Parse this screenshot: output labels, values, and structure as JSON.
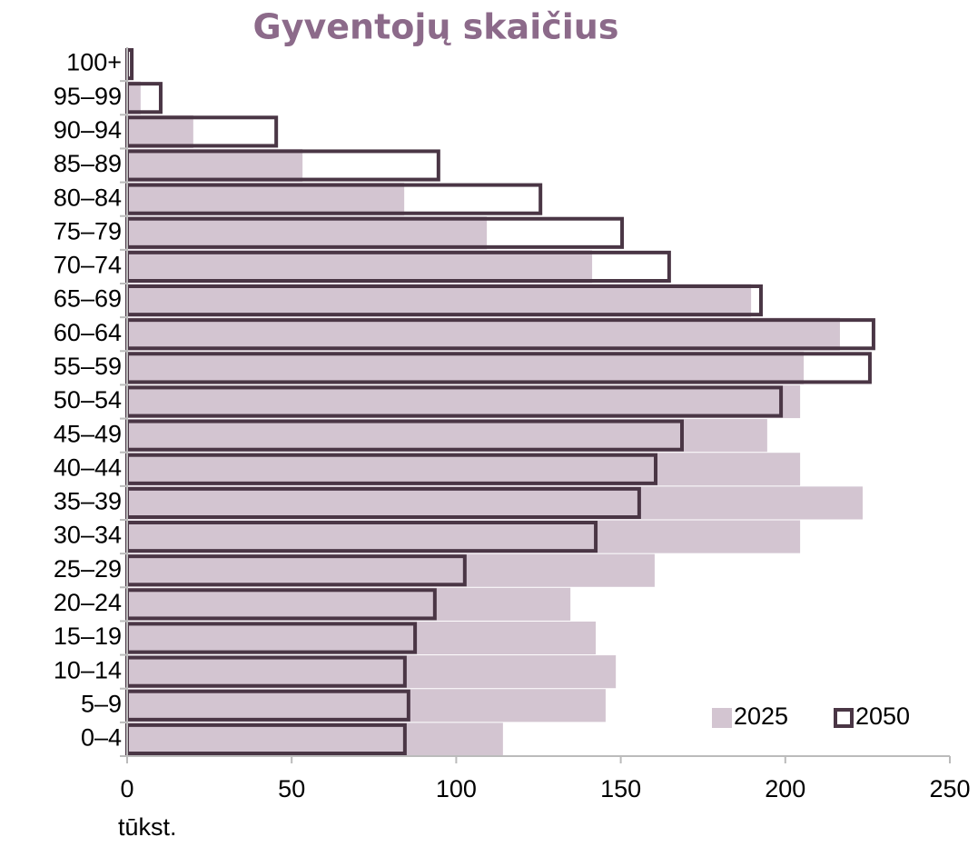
{
  "chart_data": {
    "type": "barh",
    "title": "Gyventojų skaičius",
    "xlabel": "tūkst.",
    "categories": [
      "0–4",
      "5–9",
      "10–14",
      "15–19",
      "20–24",
      "25–29",
      "30–34",
      "35–39",
      "40–44",
      "45–49",
      "50–54",
      "55–59",
      "60–64",
      "65–69",
      "70–74",
      "75–79",
      "80–84",
      "85–89",
      "90–94",
      "95–99",
      "100+"
    ],
    "series": [
      {
        "name": "2025",
        "color": "#d3c5d1",
        "style": "filled",
        "values": [
          114.2,
          145.4,
          148.5,
          142.4,
          134.7,
          160.3,
          204.5,
          223.5,
          204.5,
          194.5,
          204.5,
          205.6,
          216.6,
          189.6,
          141.3,
          109.3,
          84.2,
          53.3,
          20.1,
          4.1,
          0.5
        ]
      },
      {
        "name": "2050",
        "color": "#4a3645",
        "style": "outline",
        "values": [
          84.4,
          85.5,
          84.4,
          87.5,
          93.5,
          102.6,
          142.4,
          155.6,
          160.6,
          168.6,
          198.7,
          225.7,
          226.8,
          192.6,
          164.7,
          150.4,
          125.6,
          94.6,
          45.3,
          10.2,
          1.4
        ]
      }
    ],
    "xlim": [
      0,
      250
    ],
    "xticks": [
      0,
      50,
      100,
      150,
      200,
      250
    ],
    "legend": "lower right",
    "grid": false
  }
}
